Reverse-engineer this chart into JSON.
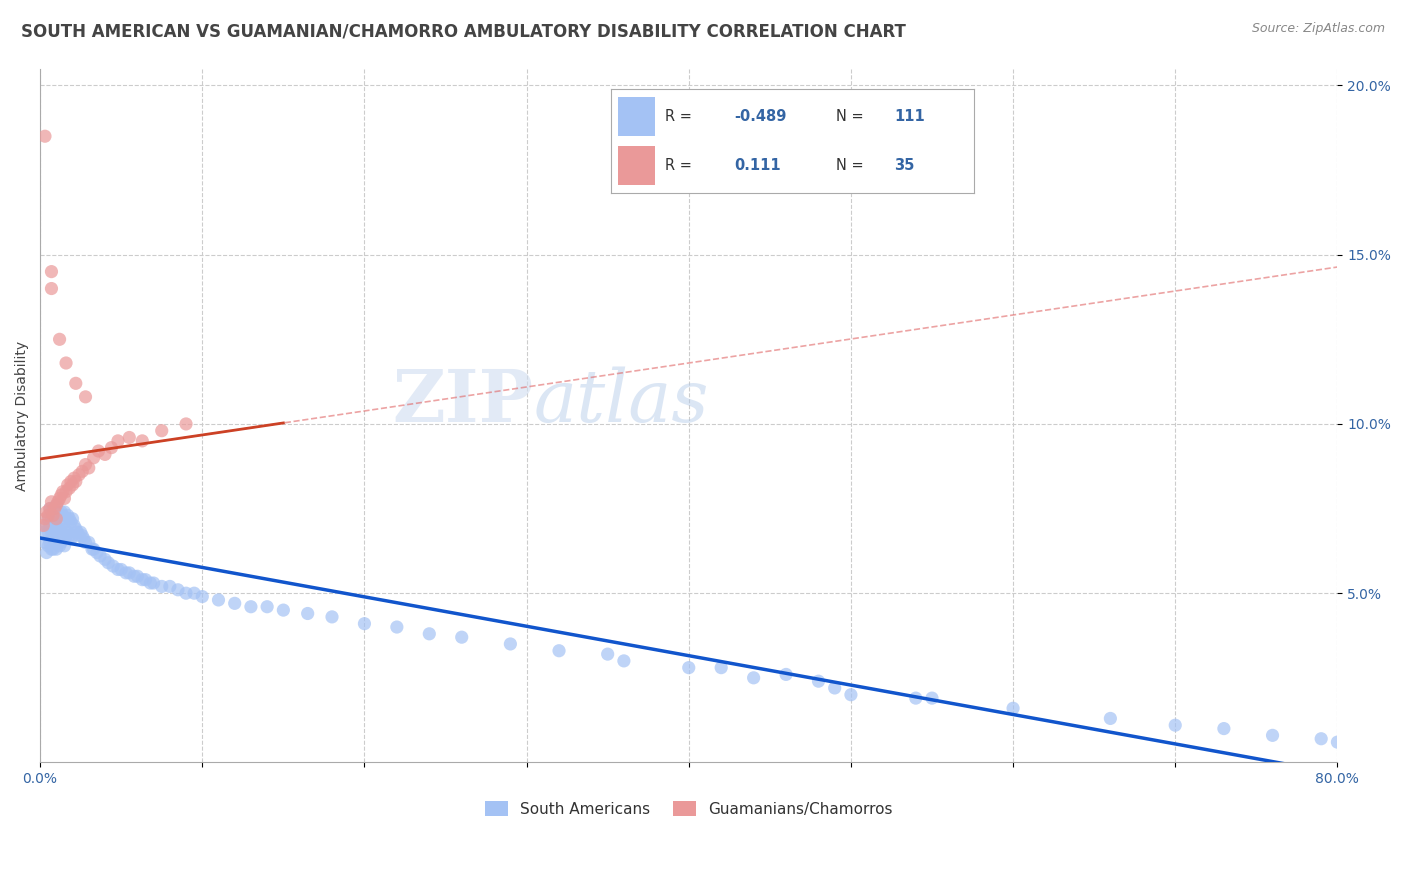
{
  "title": "SOUTH AMERICAN VS GUAMANIAN/CHAMORRO AMBULATORY DISABILITY CORRELATION CHART",
  "source": "Source: ZipAtlas.com",
  "ylabel": "Ambulatory Disability",
  "xlim": [
    0.0,
    0.8
  ],
  "ylim": [
    0.0,
    0.205
  ],
  "blue_color": "#a4c2f4",
  "pink_color": "#ea9999",
  "blue_line_color": "#1155cc",
  "pink_line_color": "#cc4125",
  "dashed_line_color": "#e06666",
  "legend_R1": "-0.489",
  "legend_N1": "111",
  "legend_R2": "0.111",
  "legend_N2": "35",
  "watermark_top": "ZIP",
  "watermark_bot": "atlas",
  "title_fontsize": 12,
  "axis_label_fontsize": 10,
  "tick_fontsize": 10,
  "south_american_x": [
    0.002,
    0.003,
    0.004,
    0.004,
    0.005,
    0.005,
    0.005,
    0.006,
    0.006,
    0.006,
    0.007,
    0.007,
    0.007,
    0.008,
    0.008,
    0.008,
    0.008,
    0.009,
    0.009,
    0.009,
    0.01,
    0.01,
    0.01,
    0.01,
    0.011,
    0.011,
    0.011,
    0.012,
    0.012,
    0.012,
    0.013,
    0.013,
    0.013,
    0.014,
    0.014,
    0.015,
    0.015,
    0.015,
    0.016,
    0.016,
    0.017,
    0.017,
    0.018,
    0.018,
    0.019,
    0.019,
    0.02,
    0.02,
    0.021,
    0.022,
    0.023,
    0.024,
    0.025,
    0.026,
    0.027,
    0.028,
    0.03,
    0.032,
    0.033,
    0.035,
    0.037,
    0.04,
    0.042,
    0.045,
    0.048,
    0.05,
    0.053,
    0.055,
    0.058,
    0.06,
    0.063,
    0.065,
    0.068,
    0.07,
    0.075,
    0.08,
    0.085,
    0.09,
    0.095,
    0.1,
    0.11,
    0.12,
    0.13,
    0.14,
    0.15,
    0.165,
    0.18,
    0.2,
    0.22,
    0.24,
    0.26,
    0.29,
    0.32,
    0.36,
    0.4,
    0.44,
    0.49,
    0.54,
    0.6,
    0.66,
    0.7,
    0.73,
    0.76,
    0.79,
    0.8,
    0.5,
    0.55,
    0.35,
    0.42,
    0.46,
    0.48
  ],
  "south_american_y": [
    0.068,
    0.065,
    0.07,
    0.062,
    0.072,
    0.068,
    0.064,
    0.075,
    0.07,
    0.065,
    0.072,
    0.068,
    0.063,
    0.075,
    0.071,
    0.068,
    0.063,
    0.073,
    0.069,
    0.065,
    0.076,
    0.072,
    0.068,
    0.063,
    0.074,
    0.069,
    0.065,
    0.073,
    0.069,
    0.064,
    0.074,
    0.07,
    0.065,
    0.073,
    0.068,
    0.074,
    0.069,
    0.064,
    0.072,
    0.067,
    0.073,
    0.068,
    0.072,
    0.067,
    0.071,
    0.066,
    0.072,
    0.067,
    0.07,
    0.069,
    0.068,
    0.067,
    0.068,
    0.067,
    0.066,
    0.065,
    0.065,
    0.063,
    0.063,
    0.062,
    0.061,
    0.06,
    0.059,
    0.058,
    0.057,
    0.057,
    0.056,
    0.056,
    0.055,
    0.055,
    0.054,
    0.054,
    0.053,
    0.053,
    0.052,
    0.052,
    0.051,
    0.05,
    0.05,
    0.049,
    0.048,
    0.047,
    0.046,
    0.046,
    0.045,
    0.044,
    0.043,
    0.041,
    0.04,
    0.038,
    0.037,
    0.035,
    0.033,
    0.03,
    0.028,
    0.025,
    0.022,
    0.019,
    0.016,
    0.013,
    0.011,
    0.01,
    0.008,
    0.007,
    0.006,
    0.02,
    0.019,
    0.032,
    0.028,
    0.026,
    0.024
  ],
  "guamanian_x": [
    0.002,
    0.003,
    0.004,
    0.005,
    0.006,
    0.007,
    0.008,
    0.009,
    0.01,
    0.01,
    0.011,
    0.012,
    0.013,
    0.014,
    0.015,
    0.016,
    0.017,
    0.018,
    0.019,
    0.02,
    0.021,
    0.022,
    0.024,
    0.026,
    0.028,
    0.03,
    0.033,
    0.036,
    0.04,
    0.044,
    0.048,
    0.055,
    0.063,
    0.075,
    0.09
  ],
  "guamanian_y": [
    0.07,
    0.072,
    0.074,
    0.073,
    0.075,
    0.077,
    0.073,
    0.075,
    0.076,
    0.072,
    0.077,
    0.078,
    0.079,
    0.08,
    0.078,
    0.08,
    0.082,
    0.081,
    0.083,
    0.082,
    0.084,
    0.083,
    0.085,
    0.086,
    0.088,
    0.087,
    0.09,
    0.092,
    0.091,
    0.093,
    0.095,
    0.096,
    0.095,
    0.098,
    0.1
  ],
  "guamanian_outliers_x": [
    0.003,
    0.007,
    0.007,
    0.012,
    0.016,
    0.022,
    0.028
  ],
  "guamanian_outliers_y": [
    0.185,
    0.145,
    0.14,
    0.125,
    0.118,
    0.112,
    0.108
  ]
}
